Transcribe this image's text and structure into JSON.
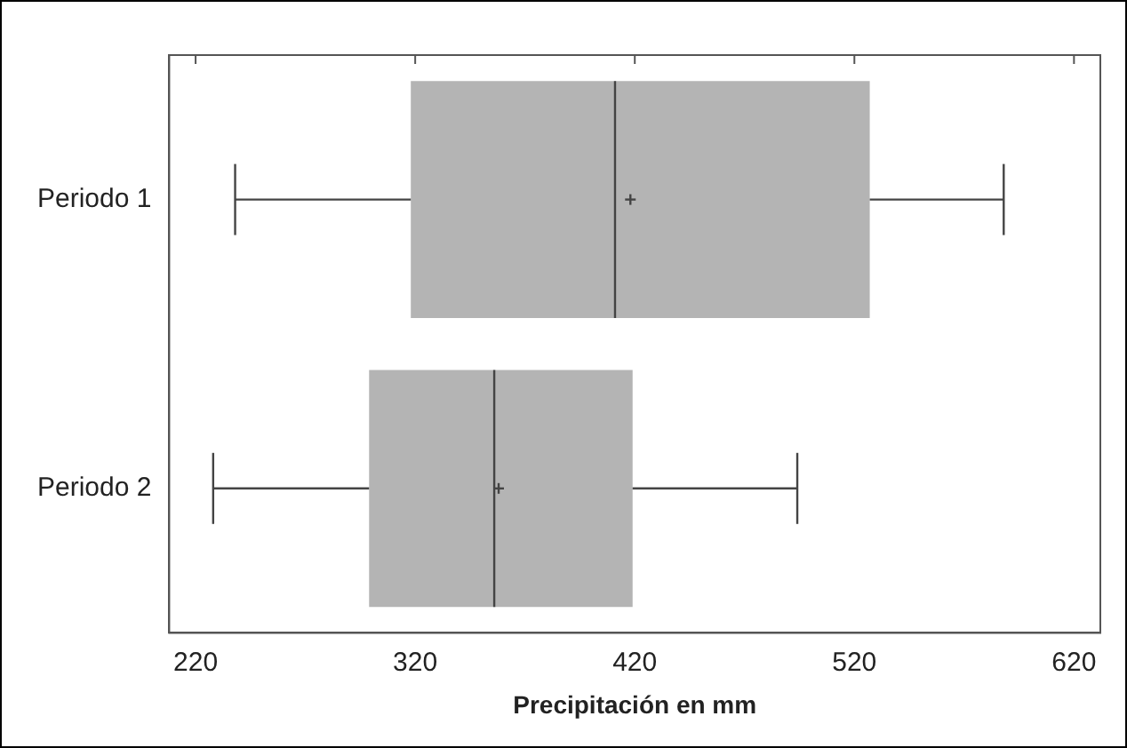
{
  "chart_data": {
    "type": "box",
    "orientation": "horizontal",
    "xlabel": "Precipitación en mm",
    "categories": [
      "Periodo 1",
      "Periodo 2"
    ],
    "color": "#b4b4b4",
    "boxes": [
      {
        "low": 238,
        "q1": 318,
        "median": 411,
        "q3": 527,
        "high": 588,
        "mean": 418
      },
      {
        "low": 228,
        "q1": 299,
        "median": 356,
        "q3": 419,
        "high": 494,
        "mean": 358
      }
    ],
    "xlim": [
      208,
      632
    ],
    "xticks": [
      220,
      320,
      420,
      520,
      620
    ],
    "grid": false,
    "legend": false
  }
}
